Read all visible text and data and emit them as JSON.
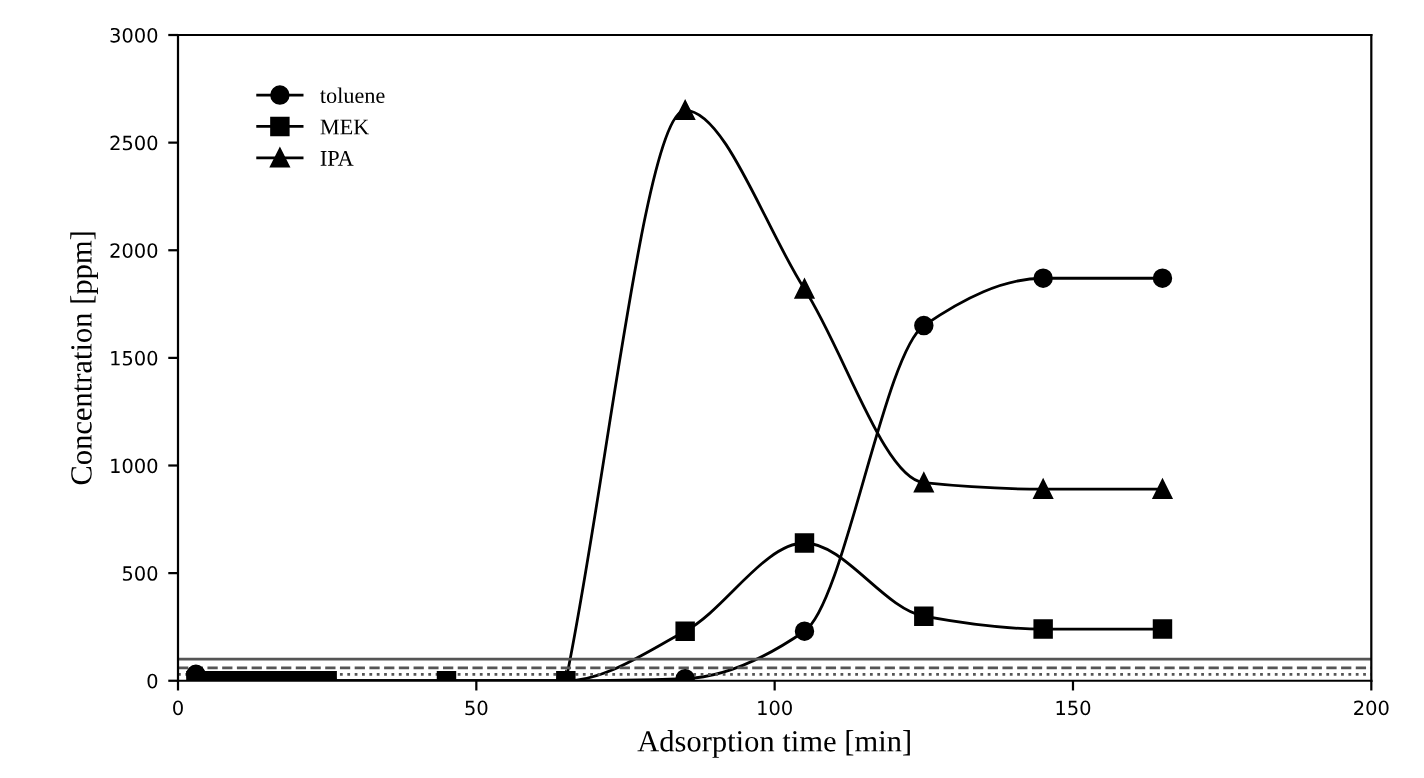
{
  "chart_data": {
    "type": "line",
    "xlabel": "Adsorption time [min]",
    "ylabel": "Concentration [ppm]",
    "xlim": [
      0,
      200
    ],
    "xticks": [
      0,
      50,
      100,
      150,
      200
    ],
    "ylim": [
      0,
      3000
    ],
    "yticks": [
      0,
      500,
      1000,
      1500,
      2000,
      2500,
      3000
    ],
    "grid": false,
    "legend": "top left",
    "series": [
      {
        "name": "toluene",
        "color": "#000000",
        "marker": "circle",
        "x": [
          3,
          5,
          7,
          9,
          11,
          13,
          15,
          17,
          19,
          21,
          23,
          25,
          45,
          65,
          85,
          105,
          125,
          145,
          165
        ],
        "values": [
          30,
          0,
          0,
          0,
          0,
          0,
          0,
          0,
          0,
          0,
          0,
          0,
          0,
          0,
          10,
          230,
          1650,
          1870,
          1870
        ]
      },
      {
        "name": "MEK",
        "color": "#000000",
        "marker": "square",
        "x": [
          3,
          5,
          7,
          9,
          11,
          13,
          15,
          17,
          19,
          21,
          23,
          25,
          45,
          65,
          85,
          105,
          125,
          145,
          165
        ],
        "values": [
          0,
          0,
          0,
          0,
          0,
          0,
          0,
          0,
          0,
          0,
          0,
          0,
          0,
          0,
          230,
          640,
          300,
          240,
          240
        ]
      },
      {
        "name": "IPA",
        "color": "#000000",
        "marker": "triangle",
        "x": [
          65,
          85,
          105,
          125,
          145,
          165
        ],
        "values": [
          0,
          2650,
          1820,
          920,
          890,
          890
        ]
      }
    ],
    "ref_lines": [
      {
        "axis": "y",
        "value": 100,
        "color": "#555555",
        "line_style": "solid"
      },
      {
        "axis": "y",
        "value": 60,
        "color": "#555555",
        "line_style": "dashed"
      },
      {
        "axis": "y",
        "value": 30,
        "color": "#555555",
        "line_style": "dotted"
      }
    ]
  }
}
